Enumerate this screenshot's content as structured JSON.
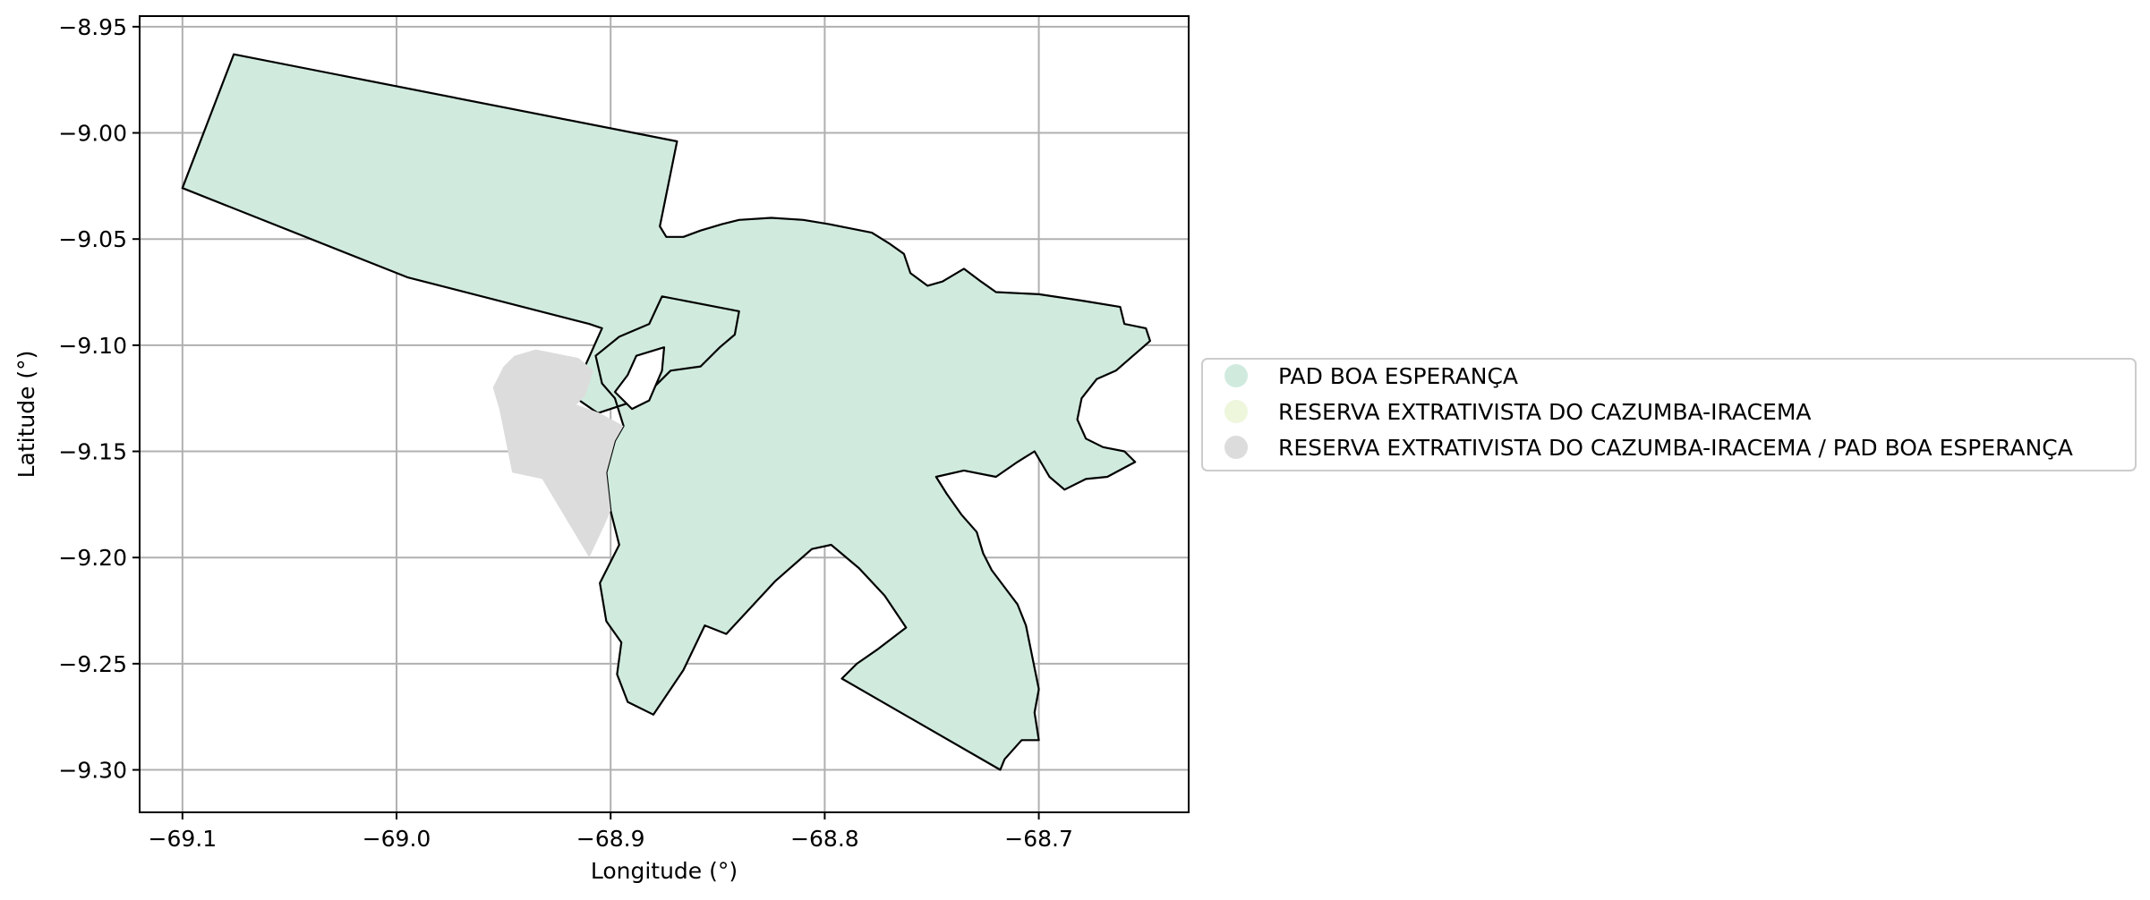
{
  "chart_data": {
    "type": "map",
    "xlabel": "Longitude (°)",
    "ylabel": "Latitude (°)",
    "xlim": [
      -69.12,
      -68.63
    ],
    "ylim": [
      -9.32,
      -8.945
    ],
    "grid": true,
    "xticks": [
      {
        "value": -69.1,
        "label": "−69.1"
      },
      {
        "value": -69.0,
        "label": "−69.0"
      },
      {
        "value": -68.9,
        "label": "−68.9"
      },
      {
        "value": -68.8,
        "label": "−68.8"
      },
      {
        "value": -68.7,
        "label": "−68.7"
      }
    ],
    "yticks": [
      {
        "value": -8.95,
        "label": "−8.95"
      },
      {
        "value": -9.0,
        "label": "−9.00"
      },
      {
        "value": -9.05,
        "label": "−9.05"
      },
      {
        "value": -9.1,
        "label": "−9.10"
      },
      {
        "value": -9.15,
        "label": "−9.15"
      },
      {
        "value": -9.2,
        "label": "−9.20"
      },
      {
        "value": -9.25,
        "label": "−9.25"
      },
      {
        "value": -9.3,
        "label": "−9.30"
      }
    ],
    "legend_position": "center-left outside right",
    "legend": [
      {
        "label": "PAD BOA ESPERANÇA",
        "color": "#d0ebde"
      },
      {
        "label": "RESERVA EXTRATIVISTA DO CAZUMBA-IRACEMA",
        "color": "#eef6dc"
      },
      {
        "label": "RESERVA EXTRATIVISTA DO CAZUMBA-IRACEMA / PAD BOA ESPERANÇA",
        "color": "#dcdcdc"
      }
    ],
    "regions": [
      {
        "name": "PAD BOA ESPERANÇA",
        "color": "#d0ebde",
        "coords": [
          [
            -69.076,
            -8.963
          ],
          [
            -68.869,
            -9.004
          ],
          [
            -68.877,
            -9.044
          ],
          [
            -68.874,
            -9.049
          ],
          [
            -68.866,
            -9.049
          ],
          [
            -68.858,
            -9.046
          ],
          [
            -68.848,
            -9.043
          ],
          [
            -68.84,
            -9.041
          ],
          [
            -68.825,
            -9.04
          ],
          [
            -68.81,
            -9.041
          ],
          [
            -68.798,
            -9.043
          ],
          [
            -68.788,
            -9.045
          ],
          [
            -68.778,
            -9.047
          ],
          [
            -68.77,
            -9.052
          ],
          [
            -68.763,
            -9.057
          ],
          [
            -68.76,
            -9.066
          ],
          [
            -68.752,
            -9.072
          ],
          [
            -68.745,
            -9.07
          ],
          [
            -68.735,
            -9.064
          ],
          [
            -68.727,
            -9.07
          ],
          [
            -68.72,
            -9.075
          ],
          [
            -68.7,
            -9.076
          ],
          [
            -68.68,
            -9.079
          ],
          [
            -68.662,
            -9.082
          ],
          [
            -68.66,
            -9.09
          ],
          [
            -68.65,
            -9.092
          ],
          [
            -68.648,
            -9.098
          ],
          [
            -68.656,
            -9.105
          ],
          [
            -68.664,
            -9.112
          ],
          [
            -68.673,
            -9.116
          ],
          [
            -68.68,
            -9.125
          ],
          [
            -68.682,
            -9.135
          ],
          [
            -68.678,
            -9.144
          ],
          [
            -68.67,
            -9.148
          ],
          [
            -68.66,
            -9.15
          ],
          [
            -68.655,
            -9.155
          ],
          [
            -68.668,
            -9.162
          ],
          [
            -68.678,
            -9.163
          ],
          [
            -68.688,
            -9.168
          ],
          [
            -68.695,
            -9.162
          ],
          [
            -68.702,
            -9.15
          ],
          [
            -68.71,
            -9.155
          ],
          [
            -68.72,
            -9.162
          ],
          [
            -68.735,
            -9.159
          ],
          [
            -68.748,
            -9.162
          ],
          [
            -68.743,
            -9.17
          ],
          [
            -68.736,
            -9.18
          ],
          [
            -68.729,
            -9.188
          ],
          [
            -68.726,
            -9.198
          ],
          [
            -68.722,
            -9.206
          ],
          [
            -68.716,
            -9.214
          ],
          [
            -68.71,
            -9.222
          ],
          [
            -68.706,
            -9.232
          ],
          [
            -68.704,
            -9.242
          ],
          [
            -68.702,
            -9.252
          ],
          [
            -68.7,
            -9.262
          ],
          [
            -68.702,
            -9.273
          ],
          [
            -68.7,
            -9.286
          ],
          [
            -68.708,
            -9.286
          ],
          [
            -68.716,
            -9.295
          ],
          [
            -68.718,
            -9.3
          ],
          [
            -68.792,
            -9.257
          ],
          [
            -68.785,
            -9.25
          ],
          [
            -68.775,
            -9.243
          ],
          [
            -68.762,
            -9.233
          ],
          [
            -68.772,
            -9.218
          ],
          [
            -68.784,
            -9.205
          ],
          [
            -68.797,
            -9.194
          ],
          [
            -68.806,
            -9.196
          ],
          [
            -68.823,
            -9.211
          ],
          [
            -68.846,
            -9.236
          ],
          [
            -68.856,
            -9.232
          ],
          [
            -68.866,
            -9.253
          ],
          [
            -68.88,
            -9.274
          ],
          [
            -68.892,
            -9.268
          ],
          [
            -68.897,
            -9.255
          ],
          [
            -68.895,
            -9.24
          ],
          [
            -68.902,
            -9.23
          ],
          [
            -68.905,
            -9.212
          ],
          [
            -68.896,
            -9.194
          ],
          [
            -68.9,
            -9.178
          ],
          [
            -68.902,
            -9.16
          ],
          [
            -68.898,
            -9.145
          ],
          [
            -68.894,
            -9.138
          ],
          [
            -68.898,
            -9.125
          ],
          [
            -68.904,
            -9.118
          ],
          [
            -68.907,
            -9.105
          ],
          [
            -68.896,
            -9.096
          ],
          [
            -68.882,
            -9.09
          ],
          [
            -68.876,
            -9.077
          ],
          [
            -68.84,
            -9.084
          ],
          [
            -68.842,
            -9.095
          ],
          [
            -68.849,
            -9.101
          ],
          [
            -68.858,
            -9.11
          ],
          [
            -68.872,
            -9.112
          ],
          [
            -68.885,
            -9.125
          ],
          [
            -68.906,
            -9.132
          ],
          [
            -68.916,
            -9.125
          ],
          [
            -68.912,
            -9.11
          ],
          [
            -68.904,
            -9.092
          ],
          [
            -68.91,
            -9.09
          ],
          [
            -68.995,
            -9.068
          ],
          [
            -69.1,
            -9.026
          ]
        ]
      },
      {
        "name": "RESERVA EXTRATIVISTA DO CAZUMBA-IRACEMA / PAD BOA ESPERANÇA",
        "color": "#dcdcdc",
        "coords": [
          [
            -68.945,
            -9.105
          ],
          [
            -68.935,
            -9.102
          ],
          [
            -68.925,
            -9.104
          ],
          [
            -68.915,
            -9.106
          ],
          [
            -68.908,
            -9.112
          ],
          [
            -68.912,
            -9.124
          ],
          [
            -68.916,
            -9.128
          ],
          [
            -68.905,
            -9.132
          ],
          [
            -68.894,
            -9.138
          ],
          [
            -68.898,
            -9.145
          ],
          [
            -68.902,
            -9.16
          ],
          [
            -68.9,
            -9.178
          ],
          [
            -68.903,
            -9.185
          ],
          [
            -68.91,
            -9.2
          ],
          [
            -68.932,
            -9.163
          ],
          [
            -68.946,
            -9.16
          ],
          [
            -68.948,
            -9.15
          ],
          [
            -68.95,
            -9.14
          ],
          [
            -68.952,
            -9.13
          ],
          [
            -68.955,
            -9.12
          ],
          [
            -68.95,
            -9.11
          ]
        ]
      }
    ],
    "holes": [
      {
        "coords": [
          [
            -68.875,
            -9.101
          ],
          [
            -68.888,
            -9.105
          ],
          [
            -68.892,
            -9.114
          ],
          [
            -68.898,
            -9.122
          ],
          [
            -68.89,
            -9.13
          ],
          [
            -68.882,
            -9.126
          ],
          [
            -68.876,
            -9.112
          ]
        ]
      }
    ]
  }
}
